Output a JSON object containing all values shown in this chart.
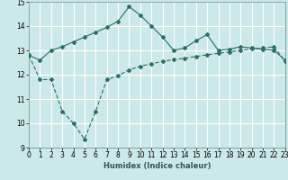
{
  "title": "",
  "xlabel": "Humidex (Indice chaleur)",
  "bg_color": "#cce8e8",
  "grid_color": "#ffffff",
  "line_color": "#2d6e63",
  "line1_x": [
    0,
    1,
    2,
    3,
    4,
    5,
    6,
    7,
    8,
    9,
    10,
    11,
    12,
    13,
    14,
    15,
    16,
    17,
    18,
    19,
    20,
    21,
    22,
    23
  ],
  "line1_y": [
    12.8,
    12.6,
    13.0,
    13.15,
    13.35,
    13.55,
    13.75,
    13.95,
    14.2,
    14.8,
    14.45,
    14.0,
    13.55,
    13.0,
    13.1,
    13.4,
    13.65,
    13.0,
    13.05,
    13.15,
    13.1,
    13.05,
    13.0,
    12.6
  ],
  "line2_x": [
    0,
    1,
    2,
    3,
    4,
    5,
    6,
    7,
    8,
    9,
    10,
    11,
    12,
    13,
    14,
    15,
    16,
    17,
    18,
    19,
    20,
    21,
    22,
    23
  ],
  "line2_y": [
    12.8,
    11.8,
    11.8,
    10.5,
    10.0,
    9.35,
    10.5,
    11.8,
    11.95,
    12.2,
    12.35,
    12.45,
    12.55,
    12.62,
    12.68,
    12.75,
    12.82,
    12.88,
    12.94,
    13.0,
    13.06,
    13.1,
    13.15,
    12.55
  ],
  "xlim": [
    0,
    23
  ],
  "ylim": [
    9,
    15
  ],
  "yticks": [
    9,
    10,
    11,
    12,
    13,
    14,
    15
  ],
  "xticks": [
    0,
    1,
    2,
    3,
    4,
    5,
    6,
    7,
    8,
    9,
    10,
    11,
    12,
    13,
    14,
    15,
    16,
    17,
    18,
    19,
    20,
    21,
    22,
    23
  ],
  "marker": "D",
  "markersize": 2.0,
  "linewidth": 0.8,
  "axis_fontsize": 6,
  "tick_fontsize": 5.5
}
